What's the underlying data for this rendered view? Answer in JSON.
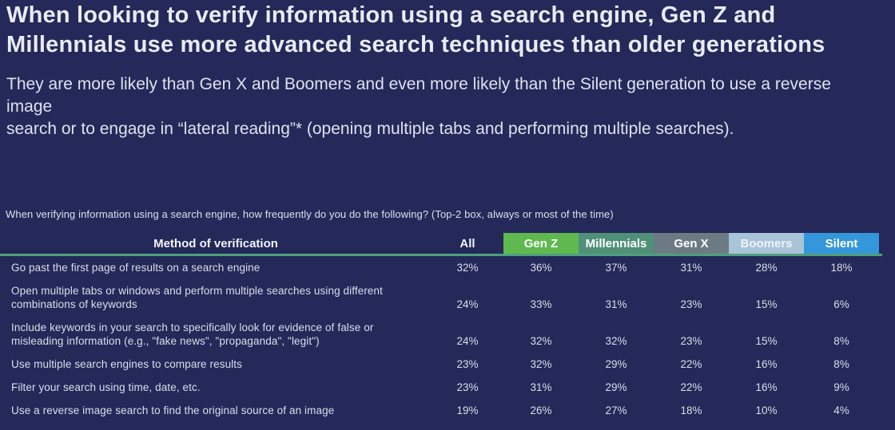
{
  "page": {
    "title": "When looking to verify information using a search engine, Gen Z and\nMillennials use more advanced search techniques than older generations",
    "subtitle": "They are more likely than Gen X and Boomers and even more likely than the Silent generation to use a reverse image\nsearch or to engage in “lateral reading”* (opening multiple tabs and performing multiple searches).",
    "survey_question": "When verifying information using a search engine, how frequently do you do the following? (Top-2 box, always or most of the time)"
  },
  "colors": {
    "background": "#242959",
    "gen_z": "#5FB94F",
    "millennials": "#509079",
    "gen_x": "#6C7B83",
    "boomers": "#A9C3D8",
    "silent": "#3497D9",
    "header_underline": "#4FA07E"
  },
  "chart_data": {
    "type": "table",
    "title": "When verifying information using a search engine, how frequently do you do the following? (Top-2 box, always or most of the time)",
    "unit": "percent, top-2 box (always or most of the time)",
    "columns": [
      "Method of verification",
      "All",
      "Gen Z",
      "Millennials",
      "Gen X",
      "Boomers",
      "Silent"
    ],
    "column_colors": {
      "Gen Z": "#5FB94F",
      "Millennials": "#509079",
      "Gen X": "#6C7B83",
      "Boomers": "#A9C3D8",
      "Silent": "#3497D9"
    },
    "rows": [
      {
        "label": "Go past the first page of results on a search engine",
        "values": [
          "32%",
          "36%",
          "37%",
          "31%",
          "28%",
          "18%"
        ]
      },
      {
        "label": "Open multiple tabs or windows and perform multiple searches using different combinations of keywords",
        "values": [
          "24%",
          "33%",
          "31%",
          "23%",
          "15%",
          "6%"
        ]
      },
      {
        "label": "Include keywords in your search to specifically look for evidence of false or misleading information (e.g., \"fake news\", \"propaganda\", \"legit\")",
        "values": [
          "24%",
          "32%",
          "32%",
          "23%",
          "15%",
          "8%"
        ]
      },
      {
        "label": "Use multiple search engines to compare results",
        "values": [
          "23%",
          "32%",
          "29%",
          "22%",
          "16%",
          "8%"
        ]
      },
      {
        "label": "Filter your search using time, date, etc.",
        "values": [
          "23%",
          "31%",
          "29%",
          "22%",
          "16%",
          "9%"
        ]
      },
      {
        "label": "Use a reverse image search to find the original source of an image",
        "values": [
          "19%",
          "26%",
          "27%",
          "18%",
          "10%",
          "4%"
        ]
      }
    ]
  }
}
